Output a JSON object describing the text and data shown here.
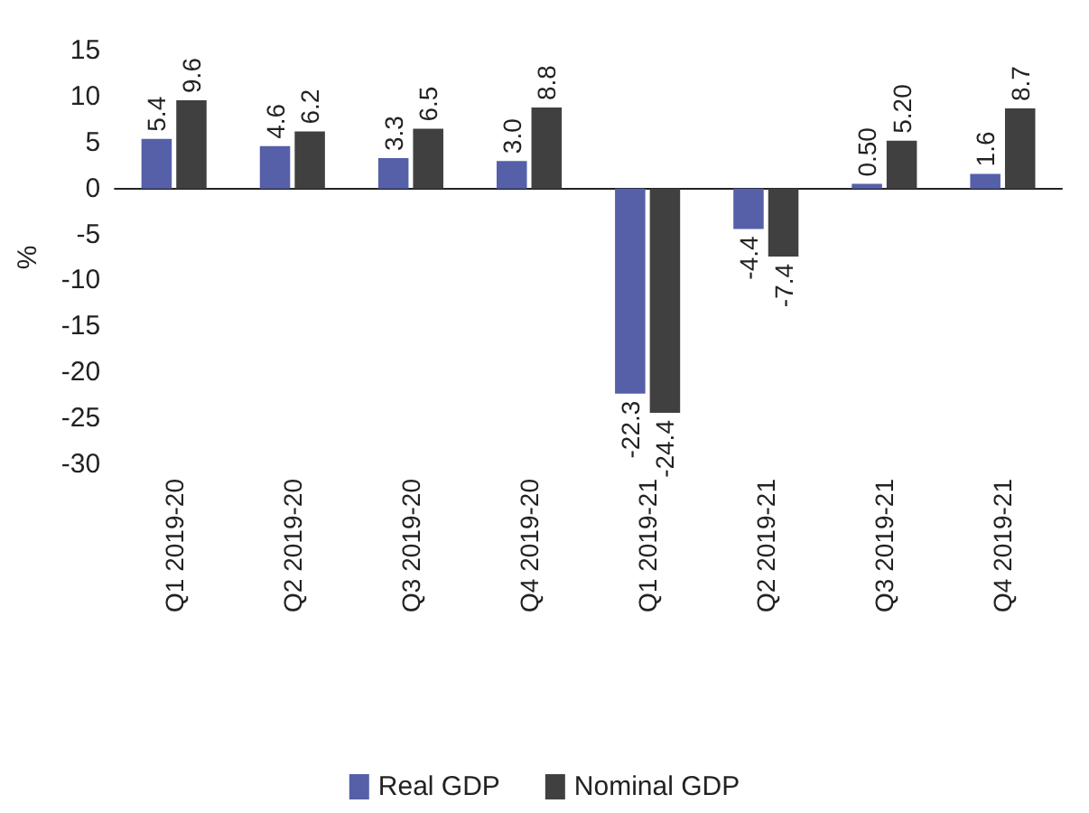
{
  "chart_data": {
    "type": "bar",
    "ylabel": "%",
    "categories": [
      "Q1 2019-20",
      "Q2 2019-20",
      "Q3 2019-20",
      "Q4 2019-20",
      "Q1 2019-21",
      "Q2 2019-21",
      "Q3 2019-21",
      "Q4 2019-21"
    ],
    "series": [
      {
        "name": "Real GDP",
        "color": "#5560a8",
        "values": [
          5.4,
          4.6,
          3.3,
          3.0,
          -22.3,
          -4.4,
          0.5,
          1.6
        ],
        "value_labels": [
          "5.4",
          "4.6",
          "3.3",
          "3.0",
          "-22.3",
          "-4.4",
          "0.50",
          "1.6"
        ]
      },
      {
        "name": "Nominal GDP",
        "color": "#404040",
        "values": [
          9.6,
          6.2,
          6.5,
          8.8,
          -24.4,
          -7.4,
          5.2,
          8.7
        ],
        "value_labels": [
          "9.6",
          "6.2",
          "6.5",
          "8.8",
          "-24.4",
          "-7.4",
          "5.20",
          "8.7"
        ]
      }
    ],
    "ylim": [
      -30,
      15
    ],
    "yticks": [
      -30,
      -25,
      -20,
      -15,
      -10,
      -5,
      0,
      5,
      10,
      15
    ],
    "legend": "bottom"
  }
}
